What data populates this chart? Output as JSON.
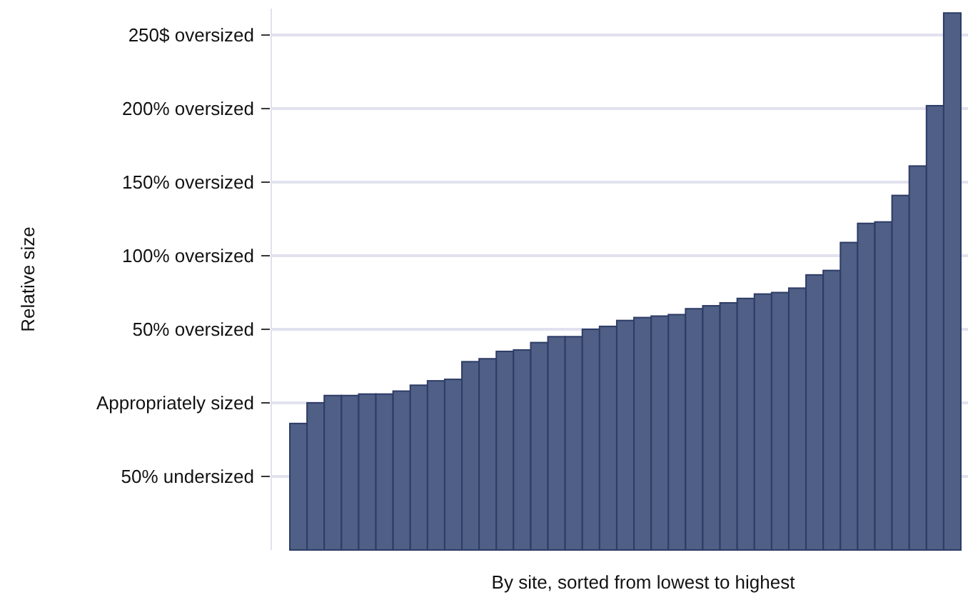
{
  "chart_data": {
    "type": "bar",
    "xlabel": "By site, sorted from lowest to highest",
    "ylabel": "Relative size",
    "categories": [
      null,
      null,
      null,
      null,
      null,
      null,
      null,
      null,
      null,
      null,
      null,
      null,
      null,
      null,
      null,
      null,
      null,
      null,
      null,
      null,
      null,
      null,
      null,
      null,
      null,
      null,
      null,
      null,
      null,
      null,
      null,
      null,
      null,
      null,
      null,
      null,
      null,
      null,
      null
    ],
    "values": [
      86,
      100,
      105,
      105,
      106,
      106,
      108,
      112,
      115,
      116,
      128,
      130,
      135,
      136,
      141,
      145,
      145,
      150,
      152,
      156,
      158,
      159,
      160,
      164,
      166,
      168,
      171,
      174,
      175,
      178,
      187,
      190,
      209,
      222,
      223,
      241,
      261,
      302,
      365
    ],
    "base": [
      -100,
      -100,
      -100,
      -100,
      -100,
      -100,
      -100,
      -100,
      -100,
      -100,
      -100,
      -100,
      -100,
      -100,
      -100,
      -100,
      -100,
      -100,
      -100,
      -100,
      -100,
      -100,
      -100,
      -100,
      -100,
      -100,
      -100,
      -100,
      -100,
      -100,
      -100,
      -100,
      -100,
      -100,
      -100,
      -100,
      -100,
      -100,
      -100
    ],
    "color": "#4f5f85",
    "ylim": [
      -100,
      268
    ],
    "yticks": [
      {
        "value": -50,
        "label": "50% undersized"
      },
      {
        "value": 0,
        "label": "Appropriately sized"
      },
      {
        "value": 50,
        "label": "50% oversized"
      },
      {
        "value": 100,
        "label": "100% oversized"
      },
      {
        "value": 150,
        "label": "150% oversized"
      },
      {
        "value": 200,
        "label": "200% oversized"
      },
      {
        "value": 250,
        "label": "250$ oversized"
      }
    ],
    "grid": "y"
  }
}
